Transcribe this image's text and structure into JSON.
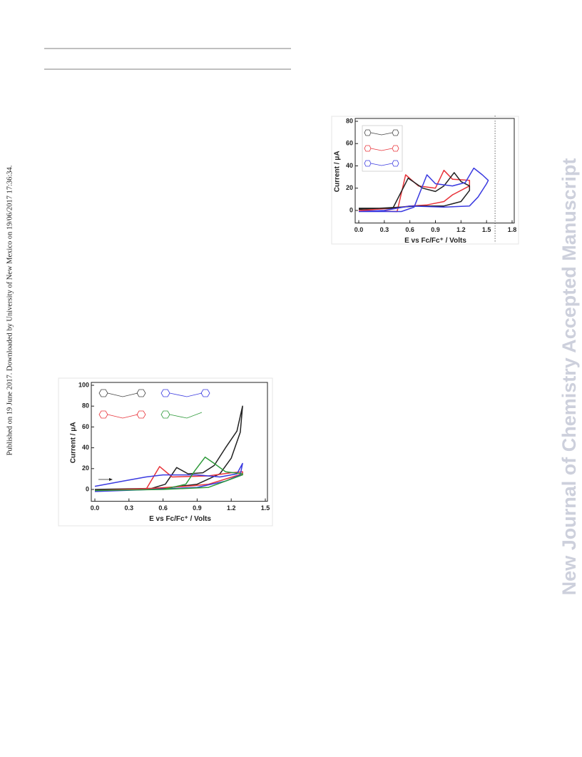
{
  "side_note": "Published on 19 June 2017. Downloaded by University of New Mexico on 19/06/2017 17:36:34.",
  "watermark": "New Journal of Chemistry Accepted Manuscript",
  "chart_data": [
    {
      "type": "line",
      "ylabel": "Current / μA",
      "xlabel": "E vs Fc/Fc⁺ / Volts",
      "xlim": [
        0,
        1.8
      ],
      "ylim": [
        -10,
        80
      ],
      "vline": 1.6,
      "xticks": [
        {
          "value": 0,
          "label": "0.0"
        },
        {
          "value": 0.3,
          "label": "0.3"
        },
        {
          "value": 0.6,
          "label": "0.6"
        },
        {
          "value": 0.9,
          "label": "0.9"
        },
        {
          "value": 1.2,
          "label": "1.2"
        },
        {
          "value": 1.5,
          "label": "1.5"
        },
        {
          "value": 1.8,
          "label": "1.8"
        }
      ],
      "yticks": [
        0,
        20,
        40,
        60,
        80
      ],
      "series": [
        {
          "color": "#e8333a",
          "x": [
            0,
            0.45,
            0.55,
            0.7,
            0.9,
            1.0,
            1.1,
            1.3,
            1.3,
            1.1,
            1.0,
            0.8,
            0.6,
            0.4,
            0
          ],
          "values": [
            0,
            -1,
            32,
            22,
            20,
            36,
            28,
            27,
            22,
            14,
            8,
            5,
            4,
            2,
            0
          ]
        },
        {
          "color": "#222222",
          "x": [
            0,
            0.4,
            0.58,
            0.75,
            0.9,
            1.0,
            1.12,
            1.2,
            1.3,
            1.3,
            1.2,
            1.0,
            0.7,
            0.5,
            0
          ],
          "values": [
            2,
            2,
            29,
            20,
            17,
            22,
            34,
            26,
            22,
            18,
            8,
            4,
            4,
            3,
            1
          ]
        },
        {
          "color": "#3a3ae0",
          "x": [
            0,
            0.5,
            0.65,
            0.8,
            0.9,
            1.1,
            1.25,
            1.35,
            1.45,
            1.52,
            1.5,
            1.4,
            1.3,
            1.0,
            0.6,
            0.3,
            0
          ],
          "values": [
            -1,
            -1,
            3,
            32,
            24,
            22,
            25,
            38,
            32,
            27,
            24,
            12,
            4,
            3,
            4,
            0,
            -1
          ]
        }
      ]
    },
    {
      "type": "line",
      "ylabel": "Current / μA",
      "xlabel": "E vs Fc/Fc⁺ / Volts",
      "xlim": [
        0,
        1.5
      ],
      "ylim": [
        -10,
        100
      ],
      "xticks": [
        {
          "value": 0,
          "label": "0.0"
        },
        {
          "value": 0.3,
          "label": "0.3"
        },
        {
          "value": 0.6,
          "label": "0.6"
        },
        {
          "value": 0.9,
          "label": "0.9"
        },
        {
          "value": 1.2,
          "label": "1.2"
        },
        {
          "value": 1.5,
          "label": "1.5"
        }
      ],
      "yticks": [
        0,
        20,
        40,
        60,
        80,
        100
      ],
      "series": [
        {
          "color": "#222222",
          "x": [
            0,
            0.5,
            0.62,
            0.72,
            0.82,
            0.95,
            1.05,
            1.15,
            1.25,
            1.3,
            1.28,
            1.2,
            1.1,
            0.9,
            0.6,
            0
          ],
          "values": [
            0,
            1,
            5,
            21,
            15,
            16,
            23,
            40,
            56,
            80,
            55,
            30,
            15,
            5,
            1,
            -1
          ]
        },
        {
          "color": "#e8333a",
          "x": [
            0,
            0.45,
            0.57,
            0.68,
            1.0,
            1.2,
            1.3,
            1.3,
            1.0,
            0.8,
            0.5,
            0
          ],
          "values": [
            -1,
            0,
            22,
            12,
            13,
            16,
            17,
            15,
            5,
            3,
            1,
            -1
          ]
        },
        {
          "color": "#3a3ae0",
          "x": [
            0,
            0.25,
            0.45,
            0.6,
            0.9,
            1.1,
            1.25,
            1.3,
            1.28,
            1.15,
            0.9,
            0.5,
            0
          ],
          "values": [
            3,
            8,
            12,
            14,
            14,
            12,
            15,
            25,
            14,
            8,
            2,
            0,
            -2
          ]
        },
        {
          "color": "#2e9a3a",
          "x": [
            0,
            0.6,
            0.8,
            0.88,
            0.97,
            1.05,
            1.15,
            1.3,
            1.3,
            1.15,
            1.0,
            0.6,
            0
          ],
          "values": [
            -1,
            0,
            5,
            18,
            31,
            25,
            17,
            15,
            14,
            8,
            2,
            0,
            -1
          ]
        }
      ]
    }
  ]
}
